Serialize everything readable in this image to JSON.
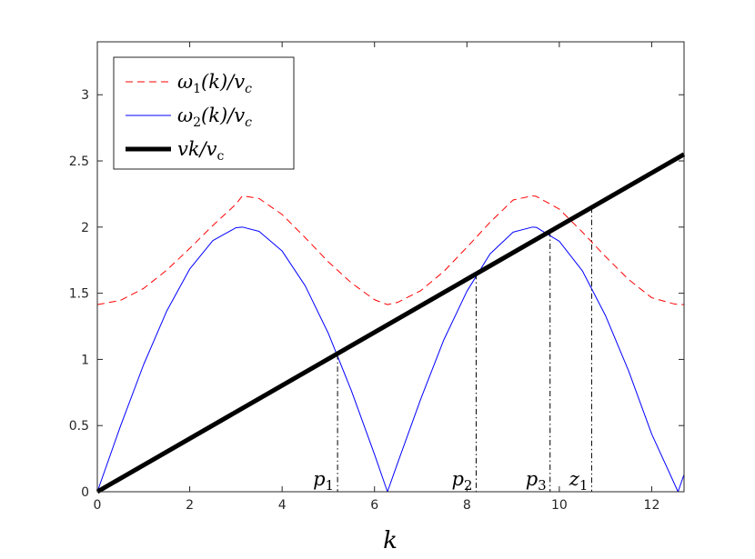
{
  "chart_data": {
    "type": "line",
    "xlabel": "k",
    "ylabel": "",
    "title": "",
    "xlim": [
      0,
      12.7
    ],
    "ylim": [
      0,
      3.4
    ],
    "xticks": [
      0,
      2,
      4,
      6,
      8,
      10,
      12
    ],
    "yticks": [
      0,
      0.5,
      1,
      1.5,
      2,
      2.5,
      3
    ],
    "xtick_labels": [
      "0",
      "2",
      "4",
      "6",
      "8",
      "10",
      "12"
    ],
    "ytick_labels": [
      "0",
      "0.5",
      "1",
      "1.5",
      "2",
      "2.5",
      "3"
    ],
    "grid": false,
    "legend_position": "top-left",
    "series": [
      {
        "name": "ω1(k)/vc",
        "label_parts": {
          "main": "ω",
          "sub": "1",
          "mid": "(k)/v",
          "sub2": "c"
        },
        "color": "#ff0000",
        "style": "dashed",
        "x": [
          0,
          0.5,
          1,
          1.5,
          2,
          2.5,
          3,
          3.14,
          3.5,
          4,
          4.5,
          5,
          5.5,
          6,
          6.28,
          6.5,
          7,
          7.5,
          8,
          8.5,
          9,
          9.42,
          9.5,
          10,
          10.5,
          11,
          11.5,
          12,
          12.5,
          12.7
        ],
        "y": [
          1.414,
          1.446,
          1.536,
          1.674,
          1.839,
          2.012,
          2.173,
          2.236,
          2.216,
          2.095,
          1.92,
          1.737,
          1.578,
          1.451,
          1.414,
          1.431,
          1.519,
          1.665,
          1.847,
          2.036,
          2.205,
          2.236,
          2.232,
          2.136,
          1.962,
          1.777,
          1.604,
          1.466,
          1.418,
          1.414
        ]
      },
      {
        "name": "ω2(k)/vc",
        "label_parts": {
          "main": "ω",
          "sub": "2",
          "mid": "(k)/v",
          "sub2": "c"
        },
        "color": "#0000ff",
        "style": "solid",
        "x": [
          0,
          0.5,
          1,
          1.5,
          2,
          2.5,
          3,
          3.14,
          3.5,
          4,
          4.5,
          5,
          5.5,
          6,
          6.28,
          6.5,
          7,
          7.5,
          8,
          8.5,
          9,
          9.42,
          9.5,
          10,
          10.5,
          11,
          11.5,
          12,
          12.57,
          12.7
        ],
        "y": [
          0,
          0.495,
          0.959,
          1.364,
          1.683,
          1.898,
          1.995,
          2.0,
          1.968,
          1.819,
          1.556,
          1.197,
          0.763,
          0.282,
          0,
          0.217,
          0.7,
          1.148,
          1.515,
          1.797,
          1.962,
          2.0,
          1.998,
          1.893,
          1.669,
          1.331,
          0.913,
          0.436,
          0,
          0.13
        ]
      },
      {
        "name": "vk/vc",
        "label_parts": {
          "main": "vk/v",
          "sub": "c"
        },
        "color": "#000000",
        "style": "solid-thick",
        "x": [
          0,
          12.7
        ],
        "y": [
          0,
          2.55
        ]
      }
    ],
    "annotations": [
      {
        "label": "p1",
        "main": "p",
        "sub": "1",
        "x": 5.2,
        "y": 1.04
      },
      {
        "label": "p2",
        "main": "p",
        "sub": "2",
        "x": 8.2,
        "y": 1.646
      },
      {
        "label": "p3",
        "main": "p",
        "sub": "3",
        "x": 9.8,
        "y": 1.968
      },
      {
        "label": "z1",
        "main": "z",
        "sub": "1",
        "x": 10.7,
        "y": 2.148
      }
    ]
  }
}
